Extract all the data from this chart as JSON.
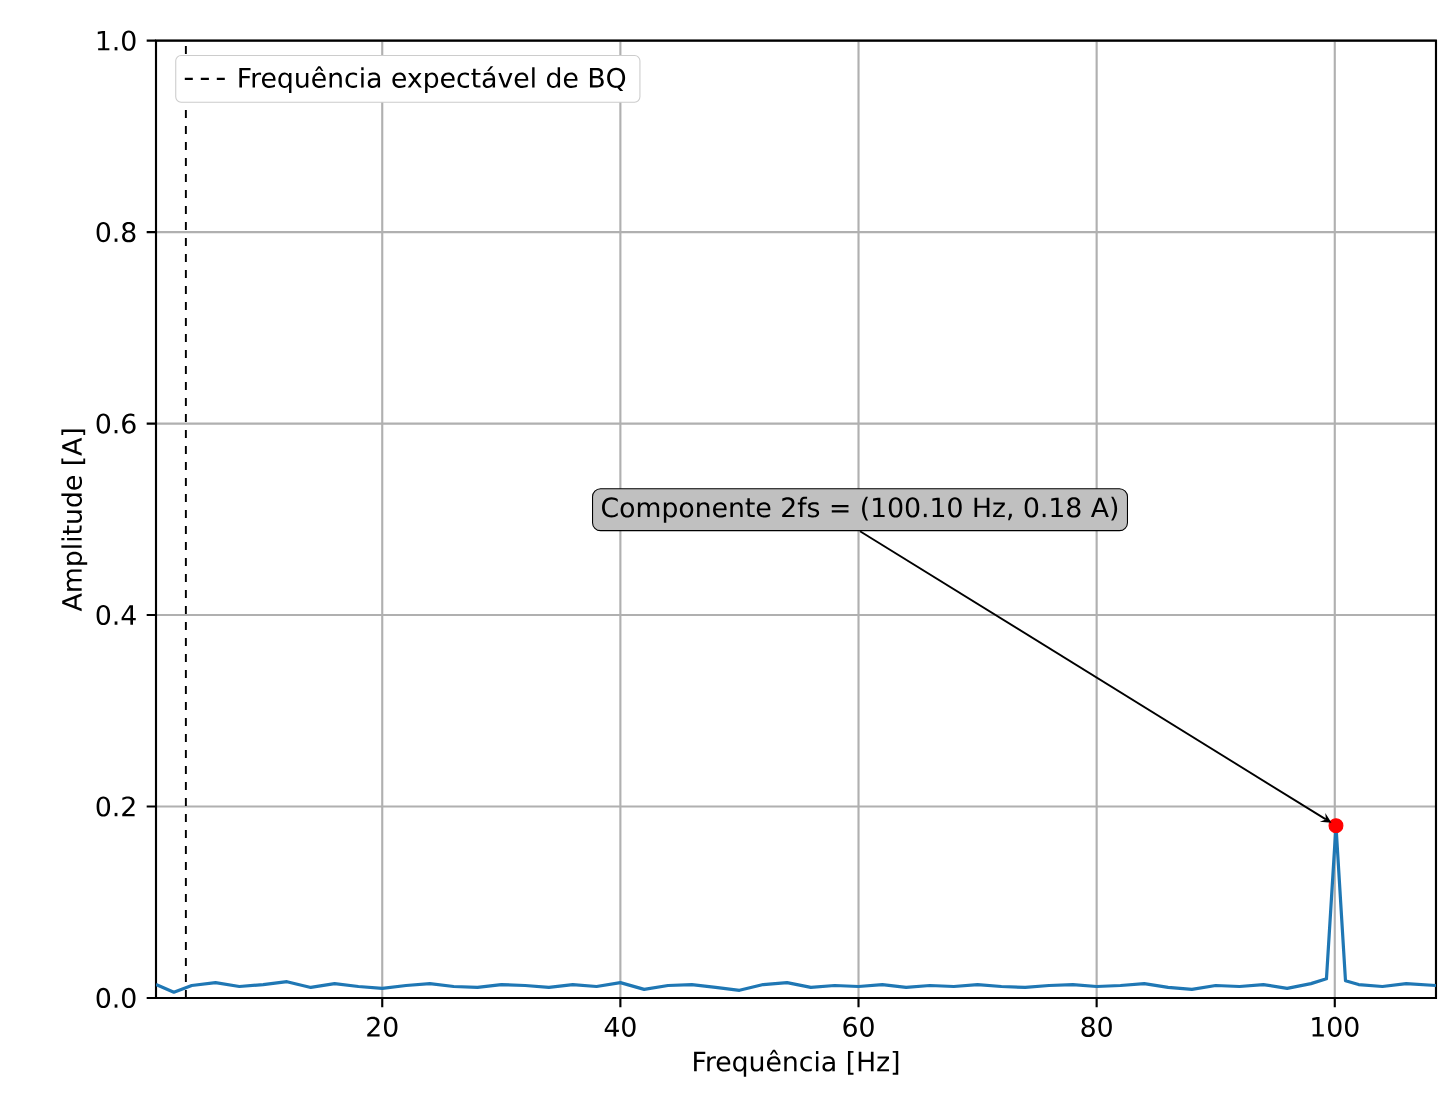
{
  "chart_data": {
    "type": "line",
    "xlabel": "Frequência [Hz]",
    "ylabel": "Amplitude [A]",
    "xlim": [
      1,
      108.5
    ],
    "ylim": [
      0,
      1
    ],
    "xticks": [
      20,
      40,
      60,
      80,
      100
    ],
    "yticks": [
      {
        "value": 0,
        "label": "0.0"
      },
      {
        "value": 0.2,
        "label": "0.2"
      },
      {
        "value": 0.4,
        "label": "0.4"
      },
      {
        "value": 0.6,
        "label": "0.6"
      },
      {
        "value": 0.8,
        "label": "0.8"
      },
      {
        "value": 1,
        "label": "1.0"
      }
    ],
    "grid": true,
    "legend": "top left",
    "series": [
      {
        "color": "#1f77b4",
        "x": [
          1,
          2.5,
          4,
          6,
          8,
          10,
          12,
          14,
          16,
          18,
          20,
          22,
          24,
          26,
          28,
          30,
          32,
          34,
          36,
          38,
          40,
          42,
          44,
          46,
          48,
          50,
          52,
          54,
          56,
          58,
          60,
          62,
          64,
          66,
          68,
          70,
          72,
          74,
          76,
          78,
          80,
          82,
          84,
          86,
          88,
          90,
          92,
          94,
          96,
          98,
          99.3,
          100.1,
          100.9,
          102,
          104,
          106,
          108.5
        ],
        "values": [
          0.014,
          0.006,
          0.013,
          0.016,
          0.012,
          0.014,
          0.017,
          0.011,
          0.015,
          0.012,
          0.01,
          0.013,
          0.015,
          0.012,
          0.011,
          0.014,
          0.013,
          0.011,
          0.014,
          0.012,
          0.016,
          0.009,
          0.013,
          0.014,
          0.011,
          0.008,
          0.014,
          0.016,
          0.011,
          0.013,
          0.012,
          0.014,
          0.011,
          0.013,
          0.012,
          0.014,
          0.012,
          0.011,
          0.013,
          0.014,
          0.012,
          0.013,
          0.015,
          0.011,
          0.009,
          0.013,
          0.012,
          0.014,
          0.01,
          0.015,
          0.02,
          0.18,
          0.018,
          0.014,
          0.012,
          0.015,
          0.013
        ]
      },
      {
        "type": "scatter",
        "color": "#ff0000",
        "x": [
          100.1
        ],
        "values": [
          0.18
        ]
      }
    ],
    "ref_lines": [
      {
        "axis": "x",
        "value": 3.5,
        "label": "Frequência expectável de BQ",
        "color": "#000000",
        "line_style": "dashed"
      }
    ],
    "annotations": [
      {
        "text": "Componente 2fs = (100.10 Hz, 0.18 A)",
        "x": 100.1,
        "y": 0.18
      }
    ]
  }
}
